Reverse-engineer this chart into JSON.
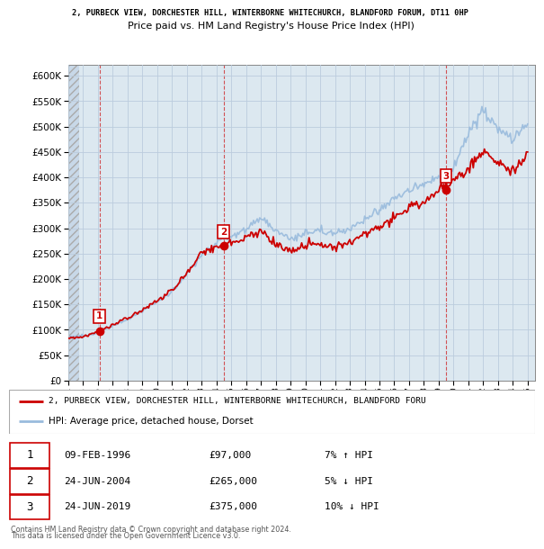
{
  "title_line1": "2, PURBECK VIEW, DORCHESTER HILL, WINTERBORNE WHITECHURCH, BLANDFORD FORUM, DT11 0HP",
  "title_line2": "Price paid vs. HM Land Registry's House Price Index (HPI)",
  "xlim_start": 1994.0,
  "xlim_end": 2025.5,
  "ylim_min": 0,
  "ylim_max": 622000,
  "sales": [
    {
      "num": 1,
      "year": 1996.1,
      "price": 97000,
      "date": "09-FEB-1996",
      "pct": "7%",
      "dir": "↑"
    },
    {
      "num": 2,
      "year": 2004.48,
      "price": 265000,
      "date": "24-JUN-2004",
      "pct": "5%",
      "dir": "↓"
    },
    {
      "num": 3,
      "year": 2019.48,
      "price": 375000,
      "date": "24-JUN-2019",
      "pct": "10%",
      "dir": "↓"
    }
  ],
  "legend_property": "2, PURBECK VIEW, DORCHESTER HILL, WINTERBORNE WHITECHURCH, BLANDFORD FORU",
  "legend_hpi": "HPI: Average price, detached house, Dorset",
  "footer1": "Contains HM Land Registry data © Crown copyright and database right 2024.",
  "footer2": "This data is licensed under the Open Government Licence v3.0.",
  "property_color": "#cc0000",
  "hpi_color": "#99bbdd",
  "grid_color": "#bbccdd",
  "yticks": [
    0,
    50000,
    100000,
    150000,
    200000,
    250000,
    300000,
    350000,
    400000,
    450000,
    500000,
    550000,
    600000
  ],
  "hpi_annual": [
    85000,
    88000,
    95000,
    108000,
    120000,
    138000,
    155000,
    175000,
    210000,
    248000,
    272000,
    285000,
    300000,
    318000,
    295000,
    278000,
    290000,
    295000,
    290000,
    300000,
    318000,
    335000,
    358000,
    375000,
    388000,
    400000,
    418000,
    490000,
    530000,
    495000,
    475000,
    505000
  ],
  "prop_annual": [
    83000,
    86000,
    97000,
    110000,
    122000,
    140000,
    157000,
    177000,
    212000,
    251000,
    265000,
    270000,
    282000,
    295000,
    268000,
    255000,
    265000,
    268000,
    262000,
    272000,
    288000,
    302000,
    323000,
    338000,
    350000,
    375000,
    392000,
    415000,
    455000,
    430000,
    410000,
    450000
  ]
}
